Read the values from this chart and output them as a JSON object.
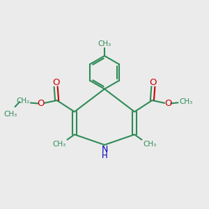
{
  "bg_color": "#ebebeb",
  "bond_color": "#2e8b57",
  "o_color": "#cc0000",
  "n_color": "#0000bb",
  "line_width": 1.5,
  "font_size": 8.5,
  "figsize": [
    3.0,
    3.0
  ],
  "dpi": 100,
  "xlim": [
    0,
    10
  ],
  "ylim": [
    0,
    10
  ]
}
